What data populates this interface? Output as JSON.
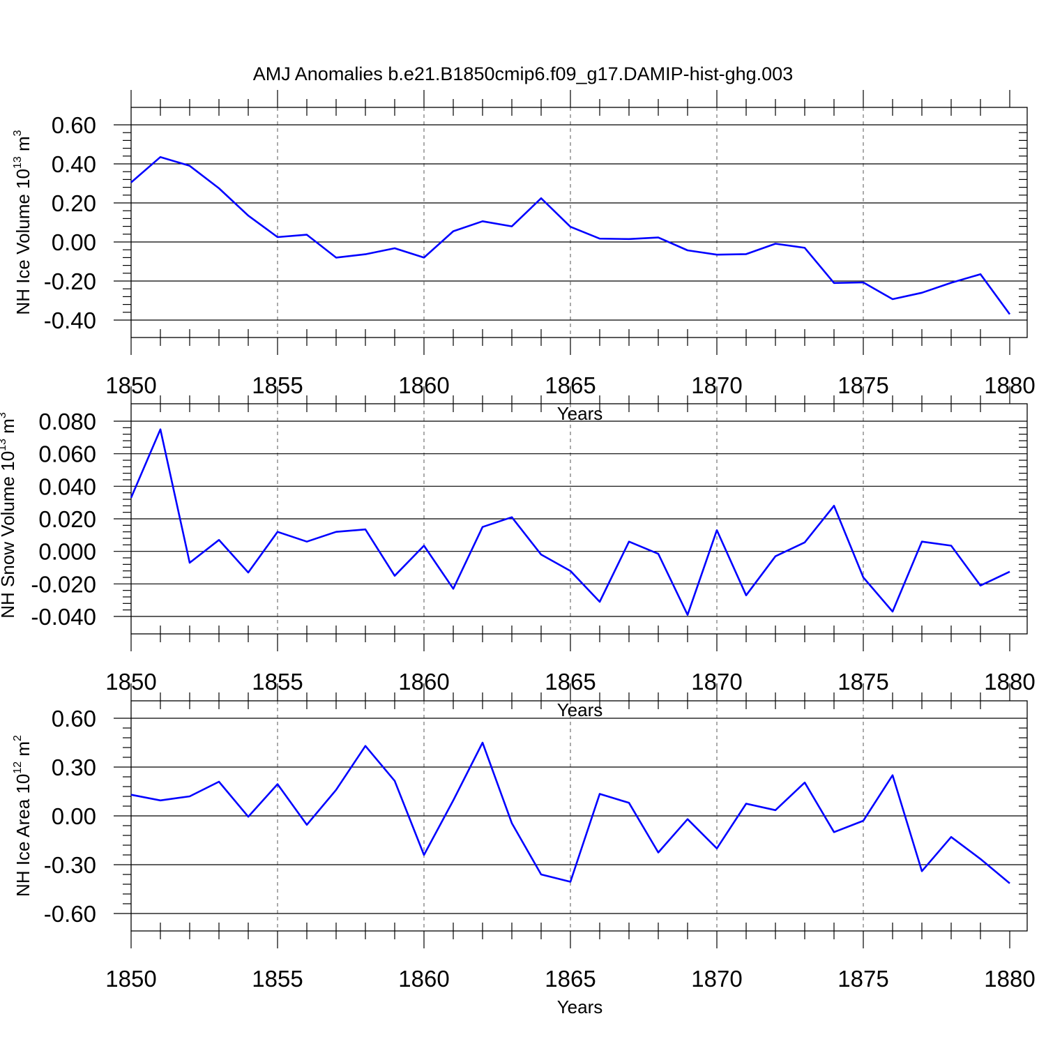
{
  "title": "AMJ Anomalies b.e21.B1850cmip6.f09_g17.DAMIP-hist-ghg.003",
  "colors": {
    "line": "#0000ff",
    "axis": "#000000",
    "grid": "#555555"
  },
  "chart_data": [
    {
      "type": "line",
      "ylabel": {
        "main": "NH Ice Volume 10",
        "exp": "13",
        "unit": " m",
        "unit_exp": "3"
      },
      "xlabel": "Years",
      "xlim": [
        1850,
        1880
      ],
      "xticks": [
        1850,
        1855,
        1860,
        1865,
        1870,
        1875,
        1880
      ],
      "xtick_labels": [
        "1850",
        "1855",
        "1860",
        "1865",
        "1870",
        "1875",
        "1880"
      ],
      "ylim": [
        -0.4,
        0.6
      ],
      "yticks": [
        -0.4,
        -0.2,
        0.0,
        0.2,
        0.4,
        0.6
      ],
      "ytick_labels": [
        "-0.40",
        "-0.20",
        "0.00",
        "0.20",
        "0.40",
        "0.60"
      ],
      "yminor_step": 0.04,
      "grid": "vertical dashed at major x ticks",
      "x": [
        1850,
        1851,
        1852,
        1853,
        1854,
        1855,
        1856,
        1857,
        1858,
        1859,
        1860,
        1861,
        1862,
        1863,
        1864,
        1865,
        1866,
        1867,
        1868,
        1869,
        1870,
        1871,
        1872,
        1873,
        1874,
        1875,
        1876,
        1877,
        1878,
        1879,
        1880
      ],
      "values": [
        0.305,
        0.435,
        0.39,
        0.275,
        0.135,
        0.025,
        0.037,
        -0.08,
        -0.063,
        -0.032,
        -0.08,
        0.055,
        0.106,
        0.08,
        0.224,
        0.078,
        0.017,
        0.015,
        0.023,
        -0.043,
        -0.065,
        -0.062,
        -0.009,
        -0.03,
        -0.21,
        -0.207,
        -0.293,
        -0.26,
        -0.209,
        -0.165,
        -0.37
      ]
    },
    {
      "type": "line",
      "ylabel": {
        "main": "NH Snow Volume 10",
        "exp": "13",
        "unit": " m",
        "unit_exp": "3"
      },
      "xlabel": "Years",
      "xlim": [
        1850,
        1880
      ],
      "xticks": [
        1850,
        1855,
        1860,
        1865,
        1870,
        1875,
        1880
      ],
      "xtick_labels": [
        "1850",
        "1855",
        "1860",
        "1865",
        "1870",
        "1875",
        "1880"
      ],
      "ylim": [
        -0.04,
        0.08
      ],
      "yticks": [
        -0.04,
        -0.02,
        0.0,
        0.02,
        0.04,
        0.06,
        0.08
      ],
      "ytick_labels": [
        "-0.040",
        "-0.020",
        "0.000",
        "0.020",
        "0.040",
        "0.060",
        "0.080"
      ],
      "yminor_step": 0.004,
      "grid": "vertical dashed at major x ticks",
      "x": [
        1850,
        1851,
        1852,
        1853,
        1854,
        1855,
        1856,
        1857,
        1858,
        1859,
        1860,
        1861,
        1862,
        1863,
        1864,
        1865,
        1866,
        1867,
        1868,
        1869,
        1870,
        1871,
        1872,
        1873,
        1874,
        1875,
        1876,
        1877,
        1878,
        1879,
        1880
      ],
      "values": [
        0.033,
        0.075,
        -0.007,
        0.007,
        -0.013,
        0.012,
        0.006,
        0.012,
        0.0135,
        -0.015,
        0.0035,
        -0.023,
        0.015,
        0.021,
        -0.002,
        -0.012,
        -0.031,
        0.006,
        -0.0015,
        -0.039,
        0.013,
        -0.027,
        -0.003,
        0.0055,
        0.028,
        -0.016,
        -0.037,
        0.006,
        0.0035,
        -0.021,
        -0.0125
      ]
    },
    {
      "type": "line",
      "ylabel": {
        "main": "NH Ice Area 10",
        "exp": "12",
        "unit": " m",
        "unit_exp": "2"
      },
      "xlabel": "Years",
      "xlim": [
        1850,
        1880
      ],
      "xticks": [
        1850,
        1855,
        1860,
        1865,
        1870,
        1875,
        1880
      ],
      "xtick_labels": [
        "1850",
        "1855",
        "1860",
        "1865",
        "1870",
        "1875",
        "1880"
      ],
      "ylim": [
        -0.6,
        0.6
      ],
      "yticks": [
        -0.6,
        -0.3,
        0.0,
        0.3,
        0.6
      ],
      "ytick_labels": [
        "-0.60",
        "-0.30",
        "0.00",
        "0.30",
        "0.60"
      ],
      "yminor_step": 0.06,
      "grid": "vertical dashed at major x ticks",
      "x": [
        1850,
        1851,
        1852,
        1853,
        1854,
        1855,
        1856,
        1857,
        1858,
        1859,
        1860,
        1861,
        1862,
        1863,
        1864,
        1865,
        1866,
        1867,
        1868,
        1869,
        1870,
        1871,
        1872,
        1873,
        1874,
        1875,
        1876,
        1877,
        1878,
        1879,
        1880
      ],
      "values": [
        0.13,
        0.095,
        0.12,
        0.21,
        -0.005,
        0.195,
        -0.055,
        0.16,
        0.43,
        0.215,
        -0.24,
        0.095,
        0.45,
        -0.045,
        -0.36,
        -0.405,
        0.135,
        0.08,
        -0.225,
        -0.02,
        -0.2,
        0.075,
        0.035,
        0.205,
        -0.1,
        -0.03,
        0.25,
        -0.34,
        -0.13,
        -0.265,
        -0.415
      ]
    }
  ]
}
